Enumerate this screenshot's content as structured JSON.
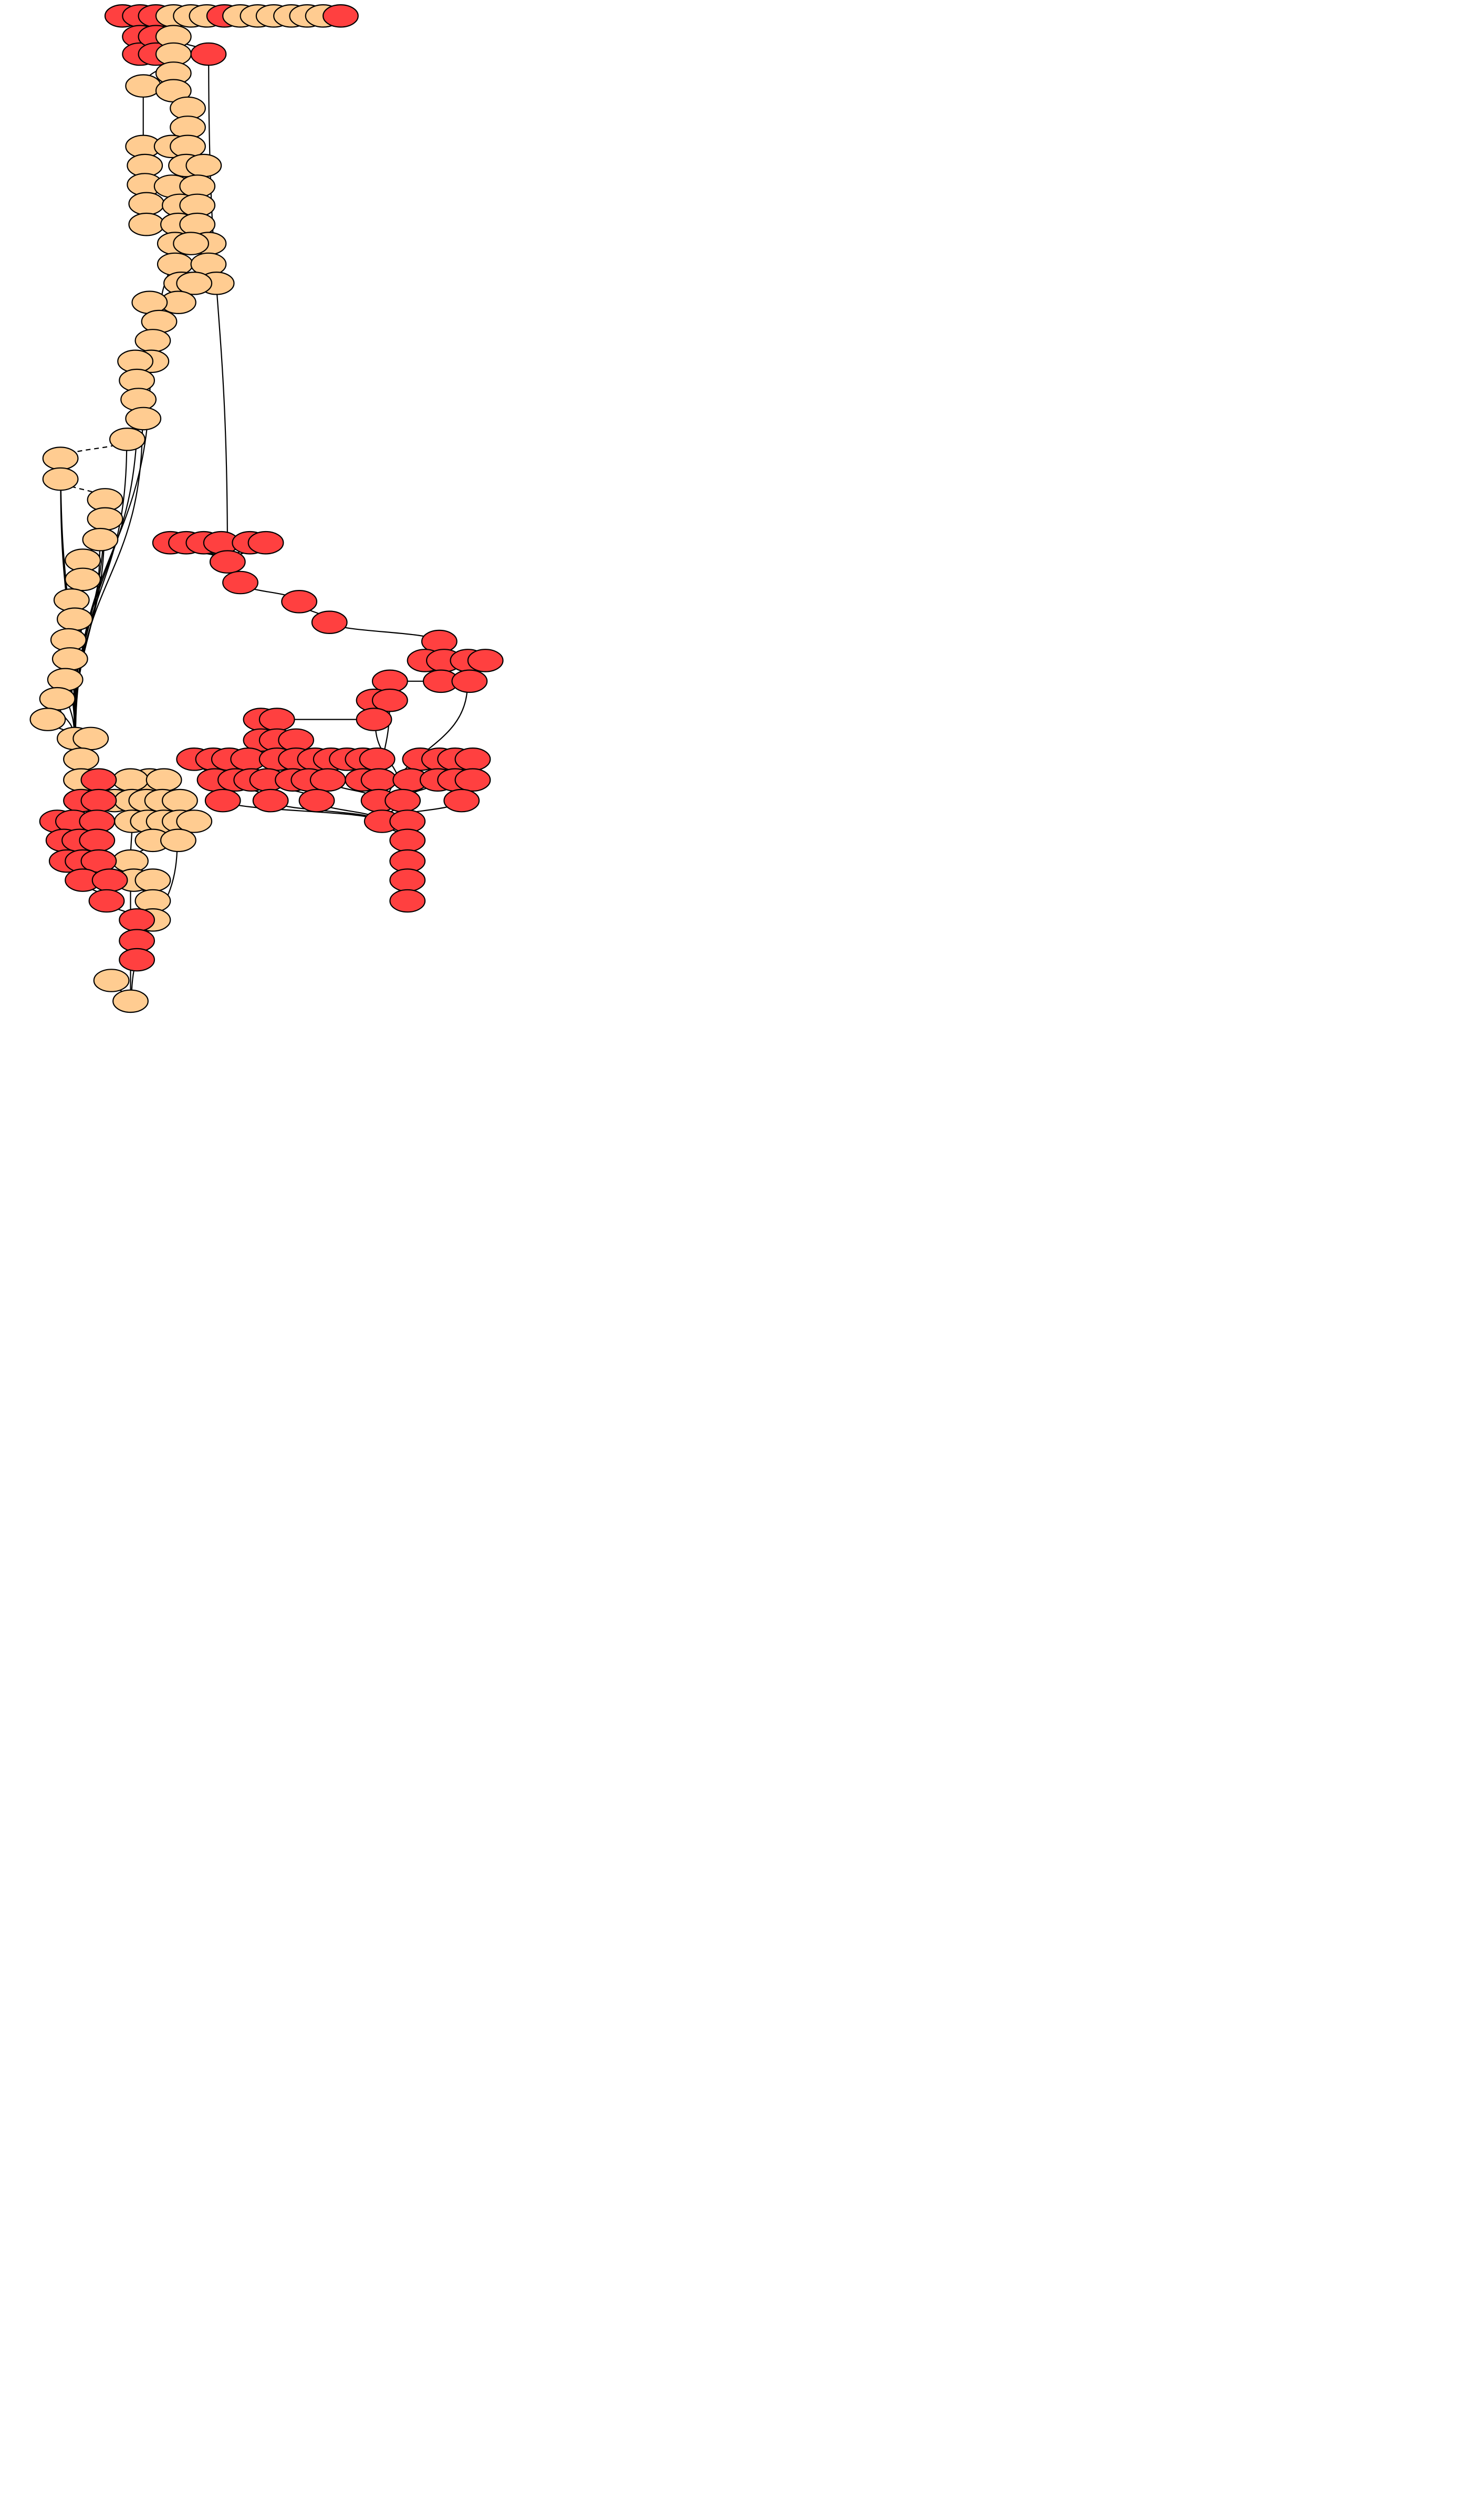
{
  "colors": {
    "red": "#ff4040",
    "orange": "#ffcc91",
    "stroke": "#000000",
    "background": "#ffffff"
  },
  "graph": {
    "type": "directed-graph",
    "node_shape": "ellipse",
    "node_count": 257,
    "edge_count": 243,
    "labels": "none",
    "legend": "none"
  }
}
